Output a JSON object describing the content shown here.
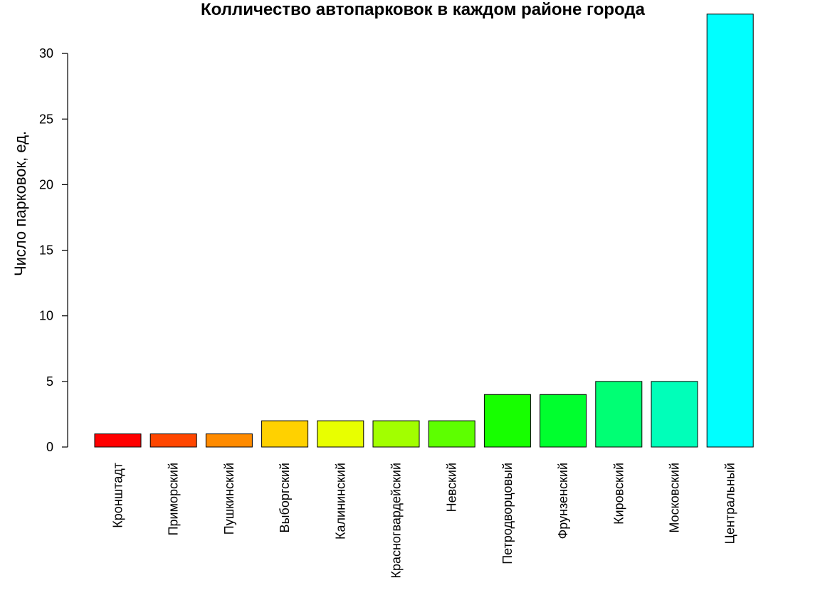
{
  "chart_data": {
    "type": "bar",
    "title": "Колличество автопарковок в каждом районе города",
    "xlabel": "",
    "ylabel": "Число парковок, ед.",
    "ylim": [
      0,
      33
    ],
    "yticks": [
      0,
      5,
      10,
      15,
      20,
      25,
      30
    ],
    "grid": false,
    "legend": "none",
    "categories": [
      "Кронштадт",
      "Приморский",
      "Пушкинский",
      "Выборгский",
      "Калининский",
      "Красногвардейский",
      "Невский",
      "Петродворцовый",
      "Фрунзенский",
      "Кировский",
      "Московский",
      "Центральный"
    ],
    "values": [
      1,
      1,
      1,
      2,
      2,
      2,
      2,
      4,
      4,
      5,
      5,
      33
    ],
    "colors": [
      "#FF0000",
      "#FF4600",
      "#FF8B00",
      "#FFD100",
      "#E8FF00",
      "#A2FF00",
      "#5DFF00",
      "#17FF00",
      "#00FF2E",
      "#00FF74",
      "#00FFB9",
      "#00FFFF"
    ]
  }
}
